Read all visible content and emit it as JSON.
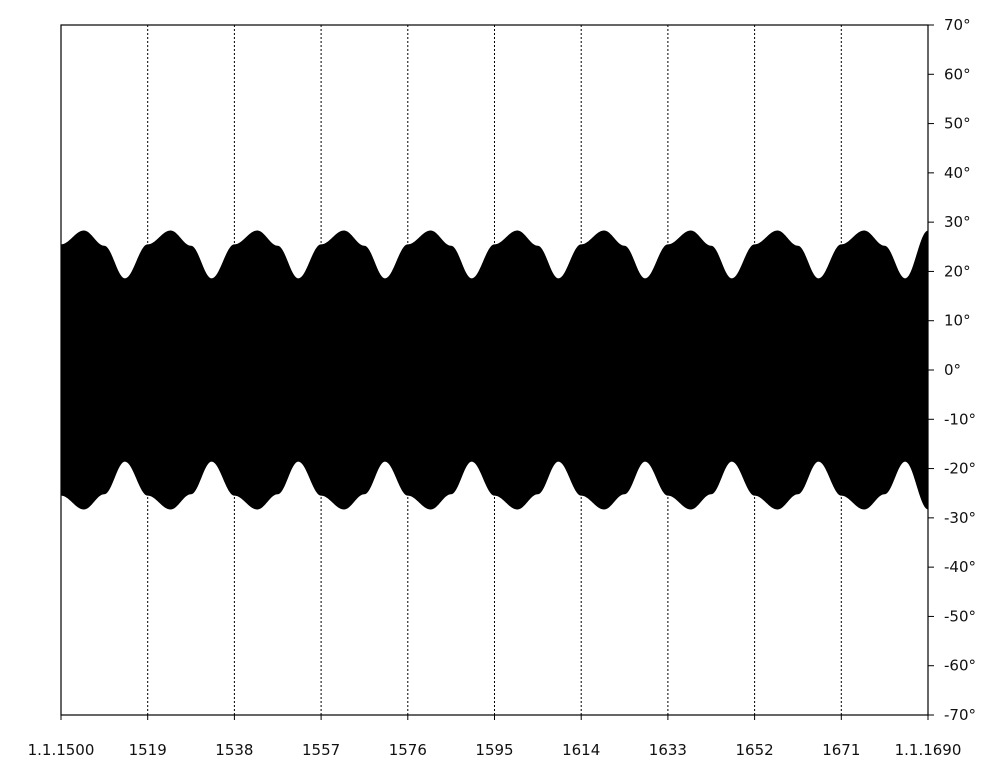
{
  "chart_data": {
    "type": "area",
    "title": "",
    "xlabel": "",
    "ylabel": "",
    "x_ticks": [
      {
        "year": 1500,
        "label": "1.1.1500"
      },
      {
        "year": 1519,
        "label": "1519"
      },
      {
        "year": 1538,
        "label": "1538"
      },
      {
        "year": 1557,
        "label": "1557"
      },
      {
        "year": 1576,
        "label": "1576"
      },
      {
        "year": 1595,
        "label": "1595"
      },
      {
        "year": 1614,
        "label": "1614"
      },
      {
        "year": 1633,
        "label": "1633"
      },
      {
        "year": 1652,
        "label": "1652"
      },
      {
        "year": 1671,
        "label": "1671"
      },
      {
        "year": 1690,
        "label": "1.1.1690"
      }
    ],
    "y_ticks": [
      {
        "value": 70,
        "label": "70°"
      },
      {
        "value": 60,
        "label": "60°"
      },
      {
        "value": 50,
        "label": "50°"
      },
      {
        "value": 40,
        "label": "40°"
      },
      {
        "value": 30,
        "label": "30°"
      },
      {
        "value": 20,
        "label": "20°"
      },
      {
        "value": 10,
        "label": "10°"
      },
      {
        "value": 0,
        "label": "0°"
      },
      {
        "value": -10,
        "label": "-10°"
      },
      {
        "value": -20,
        "label": "-20°"
      },
      {
        "value": -30,
        "label": "-30°"
      },
      {
        "value": -40,
        "label": "-40°"
      },
      {
        "value": -50,
        "label": "-50°"
      },
      {
        "value": -60,
        "label": "-60°"
      },
      {
        "value": -70,
        "label": "-70°"
      }
    ],
    "xlim": [
      1500,
      1690
    ],
    "ylim": [
      -70,
      70
    ],
    "y_axis_position": "right",
    "grid": {
      "vertical": true,
      "horizontal": false,
      "style": "dotted"
    },
    "series": [
      {
        "color": "#000000",
        "envelope_years": [
          1500,
          1505,
          1509.5,
          1514,
          1519,
          1524,
          1528.5,
          1533,
          1538,
          1543,
          1547.5,
          1552,
          1557,
          1562,
          1566.5,
          1571,
          1576,
          1581,
          1585.5,
          1590,
          1595,
          1600,
          1604.5,
          1609,
          1614,
          1619,
          1623.5,
          1628,
          1633,
          1638,
          1642.5,
          1647,
          1652,
          1657,
          1661.5,
          1666,
          1671,
          1676,
          1680.5,
          1685,
          1690
        ],
        "upper_envelope": [
          25.5,
          28.3,
          25.2,
          18.6,
          25.5,
          28.3,
          25.2,
          18.6,
          25.5,
          28.3,
          25.2,
          18.6,
          25.5,
          28.3,
          25.2,
          18.6,
          25.5,
          28.3,
          25.2,
          18.6,
          25.5,
          28.3,
          25.2,
          18.6,
          25.5,
          28.3,
          25.2,
          18.6,
          25.5,
          28.3,
          25.2,
          18.6,
          25.5,
          28.3,
          25.2,
          18.6,
          25.5,
          28.3,
          25.2,
          18.6,
          28.3
        ],
        "lower_envelope": [
          -25.5,
          -28.3,
          -25.2,
          -18.6,
          -25.5,
          -28.3,
          -25.2,
          -18.6,
          -25.5,
          -28.3,
          -25.2,
          -18.6,
          -25.5,
          -28.3,
          -25.2,
          -18.6,
          -25.5,
          -28.3,
          -25.2,
          -18.6,
          -25.5,
          -28.3,
          -25.2,
          -18.6,
          -25.5,
          -28.3,
          -25.2,
          -18.6,
          -25.5,
          -28.3,
          -25.2,
          -18.6,
          -25.5,
          -28.3,
          -25.2,
          -18.6,
          -25.5,
          -28.3,
          -25.2,
          -18.6,
          -28.3
        ]
      }
    ]
  }
}
